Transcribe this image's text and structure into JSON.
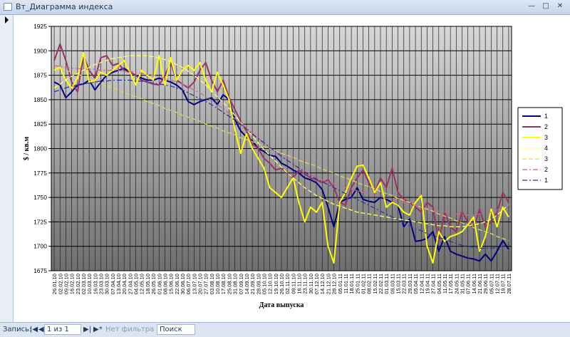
{
  "window": {
    "title": "Вт_Диаграмма индекса"
  },
  "chart_data": {
    "type": "line",
    "y_label": "$ / кв.м",
    "x_label": "Дата выпуска",
    "ylim": [
      1675,
      1925
    ],
    "yticks": [
      1675,
      1700,
      1725,
      1750,
      1775,
      1800,
      1825,
      1850,
      1875,
      1900,
      1925
    ],
    "grid": true,
    "legend": "right",
    "categories": [
      "26.01.10",
      "02.02.10",
      "09.02.10",
      "16.02.10",
      "23.02.10",
      "02.03.10",
      "10.03.10",
      "16.03.10",
      "23.03.10",
      "30.03.10",
      "07.04.10",
      "13.04.10",
      "20.04.10",
      "27.04.10",
      "04.05.10",
      "12.05.10",
      "18.05.10",
      "26.05.10",
      "01.06.10",
      "08.06.10",
      "15.06.10",
      "22.06.10",
      "30.06.10",
      "06.07.10",
      "13.07.10",
      "20.07.10",
      "27.07.10",
      "03.08.10",
      "10.08.10",
      "17.08.10",
      "25.08.10",
      "31.08.10",
      "07.09.10",
      "14.09.10",
      "21.09.10",
      "28.09.10",
      "05.10.10",
      "12.10.10",
      "19.10.10",
      "26.10.10",
      "02.11.10",
      "09.11.10",
      "16.11.10",
      "23.11.10",
      "30.11.10",
      "07.12.10",
      "14.12.10",
      "21.12.10",
      "28.12.10",
      "05.01.11",
      "11.01.11",
      "18.01.11",
      "25.01.11",
      "01.02.11",
      "08.02.11",
      "15.02.11",
      "22.02.11",
      "01.03.11",
      "09.03.11",
      "15.03.11",
      "22.03.11",
      "29.03.11",
      "05.04.11",
      "12.04.11",
      "19.04.11",
      "27.04.11",
      "04.05.11",
      "11.05.11",
      "17.05.11",
      "24.05.11",
      "31.05.11",
      "07.06.11",
      "14.06.11",
      "21.06.11",
      "29.06.11",
      "05.07.11",
      "12.07.11",
      "19.07.11",
      "28.07.11"
    ],
    "series": [
      {
        "name": "1",
        "color": "#000080",
        "style": "solid",
        "values": [
          1868,
          1865,
          1852,
          1858,
          1865,
          1866,
          1870,
          1860,
          1868,
          1875,
          1878,
          1880,
          1882,
          1878,
          1875,
          1872,
          1870,
          1870,
          1872,
          1870,
          1868,
          1865,
          1860,
          1848,
          1845,
          1848,
          1850,
          1852,
          1845,
          1855,
          1850,
          1830,
          1818,
          1812,
          1808,
          1800,
          1797,
          1793,
          1792,
          1785,
          1782,
          1778,
          1775,
          1770,
          1768,
          1765,
          1758,
          1740,
          1720,
          1745,
          1748,
          1750,
          1760,
          1748,
          1746,
          1745,
          1750,
          1748,
          1745,
          1742,
          1720,
          1728,
          1705,
          1706,
          1708,
          1715,
          1695,
          1710,
          1695,
          1692,
          1690,
          1688,
          1687,
          1685,
          1692,
          1685,
          1695,
          1706,
          1697
        ]
      },
      {
        "name": "2",
        "color": "#993366",
        "style": "solid",
        "values": [
          1890,
          1907,
          1890,
          1868,
          1858,
          1895,
          1880,
          1872,
          1893,
          1895,
          1885,
          1887,
          1880,
          1878,
          1875,
          1870,
          1868,
          1866,
          1865,
          1875,
          1888,
          1870,
          1866,
          1862,
          1868,
          1880,
          1888,
          1870,
          1858,
          1870,
          1852,
          1840,
          1828,
          1818,
          1805,
          1800,
          1790,
          1785,
          1778,
          1780,
          1775,
          1770,
          1778,
          1774,
          1770,
          1768,
          1765,
          1768,
          1760,
          1745,
          1742,
          1760,
          1770,
          1778,
          1765,
          1755,
          1770,
          1760,
          1780,
          1755,
          1748,
          1745,
          1740,
          1735,
          1745,
          1740,
          1705,
          1735,
          1720,
          1715,
          1735,
          1725,
          1718,
          1738,
          1720,
          1725,
          1735,
          1755,
          1745
        ]
      },
      {
        "name": "3",
        "color": "#ffff00",
        "style": "solid",
        "values": [
          1880,
          1883,
          1870,
          1862,
          1872,
          1898,
          1868,
          1870,
          1878,
          1875,
          1880,
          1885,
          1890,
          1878,
          1865,
          1880,
          1875,
          1870,
          1895,
          1865,
          1893,
          1870,
          1880,
          1885,
          1880,
          1888,
          1870,
          1858,
          1878,
          1865,
          1850,
          1820,
          1795,
          1815,
          1800,
          1790,
          1780,
          1760,
          1755,
          1750,
          1760,
          1770,
          1745,
          1725,
          1740,
          1735,
          1745,
          1700,
          1683,
          1745,
          1755,
          1770,
          1782,
          1783,
          1770,
          1755,
          1765,
          1740,
          1745,
          1742,
          1735,
          1732,
          1745,
          1752,
          1700,
          1683,
          1715,
          1705,
          1710,
          1712,
          1715,
          1722,
          1730,
          1695,
          1710,
          1738,
          1720,
          1740,
          1730
        ]
      },
      {
        "name": "4",
        "color": "#ffff66",
        "style": "dash",
        "values": [
          1862,
          1866,
          1870,
          1874,
          1877,
          1880,
          1883,
          1886,
          1888,
          1890,
          1892,
          1893,
          1894,
          1895,
          1895,
          1895,
          1895,
          1894,
          1893,
          1891,
          1889,
          1886,
          1883,
          1879,
          1875,
          1870,
          1865,
          1859,
          1853,
          1847,
          1841,
          1834,
          1827,
          1820,
          1813,
          1806,
          1799,
          1793,
          1787,
          1781,
          1775,
          1770,
          1765,
          1760,
          1756,
          1752,
          1749,
          1746,
          1743,
          1741,
          1739,
          1737,
          1735,
          1734,
          1733,
          1732,
          1731,
          1730,
          1729,
          1728,
          1727,
          1726,
          1725,
          1724,
          1723,
          1722,
          1721,
          1721,
          1720,
          1720,
          1720,
          1721,
          1722,
          1723,
          1725,
          1728,
          1732,
          1737,
          1743
        ]
      },
      {
        "name": "3",
        "color": "#e6d45a",
        "style": "dash",
        "values": [
          1885,
          1883,
          1880,
          1878,
          1876,
          1874,
          1871,
          1869,
          1867,
          1864,
          1862,
          1860,
          1857,
          1855,
          1853,
          1851,
          1848,
          1846,
          1844,
          1841,
          1839,
          1837,
          1834,
          1832,
          1830,
          1828,
          1825,
          1823,
          1821,
          1818,
          1816,
          1814,
          1811,
          1809,
          1807,
          1805,
          1802,
          1800,
          1798,
          1795,
          1793,
          1791,
          1788,
          1786,
          1784,
          1782,
          1779,
          1777,
          1775,
          1772,
          1770,
          1768,
          1765,
          1763,
          1761,
          1759,
          1756,
          1754,
          1752,
          1749,
          1747,
          1745,
          1742,
          1740,
          1738,
          1736,
          1733,
          1731,
          1729,
          1726,
          1724,
          1722,
          1719,
          1717,
          1715,
          1713,
          1710,
          1708,
          1706
        ]
      },
      {
        "name": "2",
        "color": "#cc6699",
        "style": "dashdot",
        "values": [
          1885,
          1884,
          1883,
          1882,
          1882,
          1881,
          1881,
          1881,
          1880,
          1880,
          1880,
          1880,
          1879,
          1879,
          1878,
          1877,
          1876,
          1875,
          1874,
          1872,
          1870,
          1868,
          1866,
          1863,
          1860,
          1857,
          1853,
          1849,
          1845,
          1841,
          1836,
          1831,
          1826,
          1821,
          1816,
          1811,
          1806,
          1801,
          1796,
          1792,
          1788,
          1784,
          1780,
          1777,
          1774,
          1771,
          1768,
          1766,
          1764,
          1762,
          1760,
          1758,
          1757,
          1755,
          1754,
          1752,
          1751,
          1749,
          1748,
          1746,
          1745,
          1743,
          1742,
          1740,
          1739,
          1737,
          1736,
          1735,
          1734,
          1733,
          1732,
          1732,
          1732,
          1733,
          1734,
          1735,
          1737,
          1740,
          1743
        ]
      },
      {
        "name": "1",
        "color": "#333399",
        "style": "dashdot",
        "values": [
          1858,
          1860,
          1862,
          1864,
          1865,
          1866,
          1867,
          1868,
          1869,
          1869,
          1870,
          1870,
          1870,
          1870,
          1869,
          1869,
          1868,
          1867,
          1866,
          1865,
          1864,
          1862,
          1860,
          1857,
          1854,
          1851,
          1848,
          1845,
          1841,
          1837,
          1833,
          1829,
          1825,
          1820,
          1815,
          1810,
          1806,
          1801,
          1797,
          1792,
          1788,
          1784,
          1780,
          1776,
          1772,
          1769,
          1766,
          1763,
          1760,
          1757,
          1754,
          1751,
          1748,
          1745,
          1742,
          1739,
          1736,
          1733,
          1730,
          1727,
          1724,
          1721,
          1718,
          1716,
          1713,
          1711,
          1709,
          1707,
          1705,
          1703,
          1701,
          1700,
          1699,
          1698,
          1698,
          1698,
          1699,
          1700,
          1702
        ]
      }
    ]
  },
  "statusbar": {
    "record_label": "Запись:",
    "position": "1 из 1",
    "filter": "Нет фильтра",
    "search": "Поиск"
  }
}
